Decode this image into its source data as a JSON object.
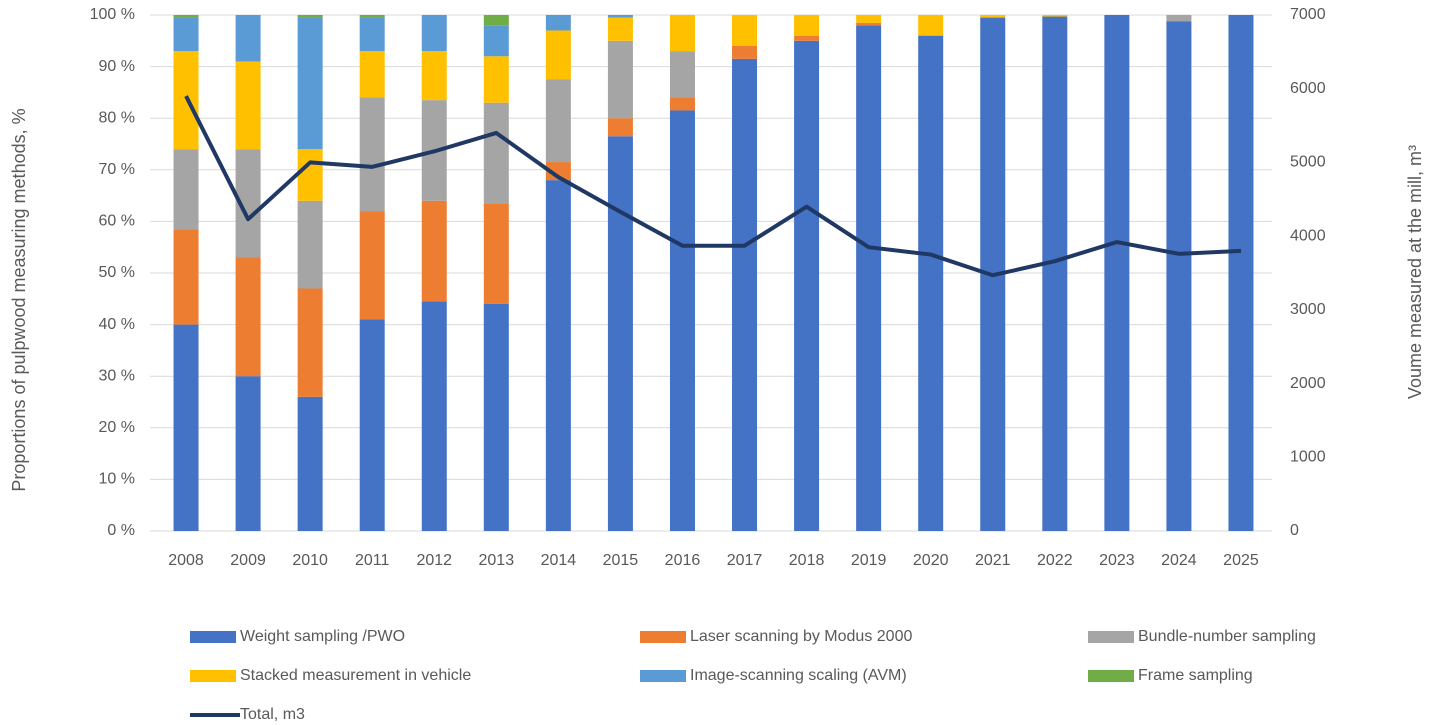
{
  "chart_data": {
    "type": "bar",
    "stacked": true,
    "categories": [
      "2008",
      "2009",
      "2010",
      "2011",
      "2012",
      "2013",
      "2014",
      "2015",
      "2016",
      "2017",
      "2018",
      "2019",
      "2020",
      "2021",
      "2022",
      "2023",
      "2024",
      "2025"
    ],
    "series": [
      {
        "name": "Weight sampling /PWO",
        "color": "#4472c4",
        "values": [
          40,
          30,
          26,
          41,
          44.5,
          44,
          68,
          76.5,
          81.5,
          91.5,
          95,
          98,
          96,
          99.5,
          99.7,
          100,
          98.8,
          100
        ]
      },
      {
        "name": "Laser scanning by Modus 2000",
        "color": "#ed7d31",
        "values": [
          18.5,
          23,
          21,
          21,
          19.5,
          19.5,
          3.5,
          3.5,
          2.5,
          2.5,
          1,
          0.5,
          0,
          0,
          0,
          0,
          0,
          0
        ]
      },
      {
        "name": "Bundle-number sampling",
        "color": "#a5a5a5",
        "values": [
          15.5,
          21,
          17,
          22,
          19.5,
          19.5,
          16,
          15,
          9,
          0,
          0,
          0,
          0,
          0,
          0,
          0,
          1.2,
          0
        ]
      },
      {
        "name": "Stacked measurement in vehicle",
        "color": "#ffc000",
        "values": [
          19,
          17,
          10,
          9,
          9.5,
          9,
          9.5,
          4.5,
          7,
          6,
          4,
          1.5,
          4,
          0.5,
          0.3,
          0,
          0,
          0
        ]
      },
      {
        "name": "Image-scanning scaling (AVM)",
        "color": "#5b9bd5",
        "values": [
          6.5,
          9,
          25.5,
          6.5,
          7,
          6,
          3,
          0.5,
          0,
          0,
          0,
          0,
          0,
          0,
          0,
          0,
          0,
          0
        ]
      },
      {
        "name": "Frame sampling",
        "color": "#70ad47",
        "values": [
          0.5,
          0,
          0.5,
          0.5,
          0,
          2,
          0,
          0,
          0,
          0,
          0,
          0,
          0,
          0,
          0,
          0,
          0,
          0
        ]
      },
      {
        "name": "Total, m3",
        "color": "#203864",
        "type": "line",
        "axis": "y2",
        "values": [
          5900,
          4230,
          5000,
          4940,
          5150,
          5400,
          4800,
          4330,
          3870,
          3870,
          4400,
          3850,
          3750,
          3470,
          3660,
          3920,
          3760,
          3800
        ]
      }
    ],
    "ylabel": "Proportions of pulpwood measuring methods, %",
    "y2label": "Voume measured at the mill, m³",
    "ylim": [
      0,
      100
    ],
    "yticks": [
      {
        "value": 0,
        "label": "0 %"
      },
      {
        "value": 10,
        "label": "10 %"
      },
      {
        "value": 20,
        "label": "20 %"
      },
      {
        "value": 30,
        "label": "30 %"
      },
      {
        "value": 40,
        "label": "40 %"
      },
      {
        "value": 50,
        "label": "50 %"
      },
      {
        "value": 60,
        "label": "60 %"
      },
      {
        "value": 70,
        "label": "70 %"
      },
      {
        "value": 80,
        "label": "80 %"
      },
      {
        "value": 90,
        "label": "90 %"
      },
      {
        "value": 100,
        "label": "100 %"
      }
    ],
    "y2lim": [
      0,
      7000
    ],
    "y2ticks": [
      0,
      1000,
      2000,
      3000,
      4000,
      5000,
      6000,
      7000
    ],
    "grid": true,
    "legend": "bottom"
  }
}
